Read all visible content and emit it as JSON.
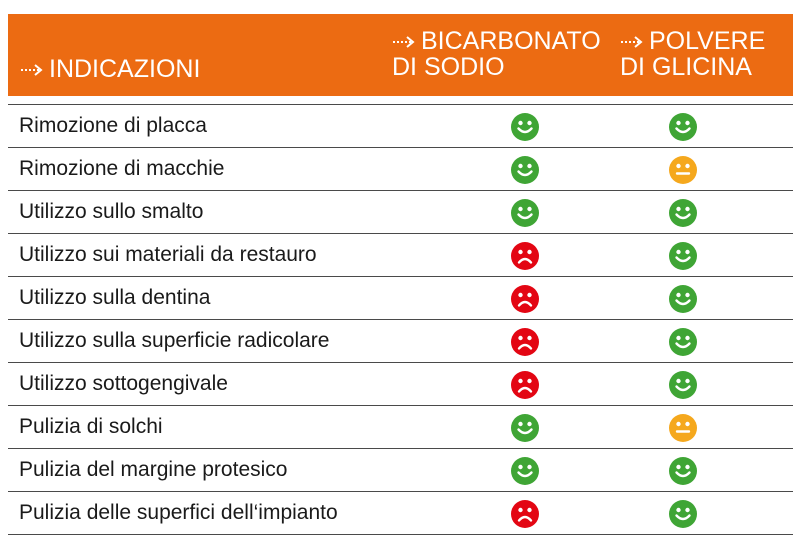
{
  "colors": {
    "header_bg": "#ec6b12",
    "good": "#3fa535",
    "neutral": "#f5a81d",
    "bad": "#e30613"
  },
  "header": {
    "col0": "INDICAZIONI",
    "col1_line1": "BICARBONATO",
    "col1_line2": "DI SODIO",
    "col2_line1": "POLVERE",
    "col2_line2": "DI GLICINA",
    "arrow_icon": "dotted-arrow-icon"
  },
  "rows": [
    {
      "label": "Rimozione di placca",
      "bicarbonato": "good",
      "glicina": "good"
    },
    {
      "label": "Rimozione di macchie",
      "bicarbonato": "good",
      "glicina": "neutral"
    },
    {
      "label": "Utilizzo sullo smalto",
      "bicarbonato": "good",
      "glicina": "good"
    },
    {
      "label": "Utilizzo sui materiali da restauro",
      "bicarbonato": "bad",
      "glicina": "good"
    },
    {
      "label": "Utilizzo sulla dentina",
      "bicarbonato": "bad",
      "glicina": "good"
    },
    {
      "label": "Utilizzo sulla superficie radicolare",
      "bicarbonato": "bad",
      "glicina": "good"
    },
    {
      "label": "Utilizzo sottogengivale",
      "bicarbonato": "bad",
      "glicina": "good"
    },
    {
      "label": "Pulizia di solchi",
      "bicarbonato": "good",
      "glicina": "neutral"
    },
    {
      "label": "Pulizia del margine protesico",
      "bicarbonato": "good",
      "glicina": "good"
    },
    {
      "label": "Pulizia delle superfici dell‘impianto",
      "bicarbonato": "bad",
      "glicina": "good"
    }
  ]
}
